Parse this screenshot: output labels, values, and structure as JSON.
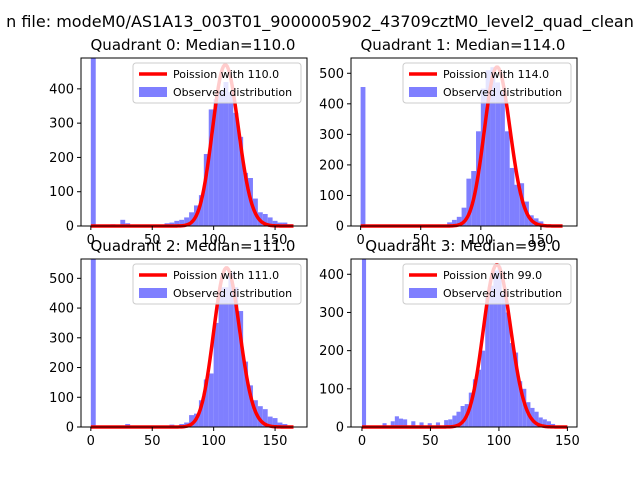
{
  "figure": {
    "suptitle": "n file: modeM0/AS1A13_003T01_9000005902_43709cztM0_level2_quad_clean"
  },
  "colors": {
    "hist": "#7f7fff",
    "poisson": "#ff0000"
  },
  "chart_data": [
    {
      "type": "bar",
      "title": "Quadrant 0: Median=110.0",
      "legend": [
        "Poission with 110.0",
        "Observed distribution"
      ],
      "legend_loc": "upper-right",
      "xlim": [
        -8,
        176
      ],
      "ylim": [
        0,
        490
      ],
      "xticks": [
        0,
        50,
        100,
        150
      ],
      "yticks": [
        0,
        100,
        200,
        300,
        400
      ],
      "bin_width": 4,
      "bins_start": [
        0,
        16,
        24,
        28,
        36,
        52,
        60,
        64,
        68,
        72,
        76,
        80,
        84,
        88,
        92,
        96,
        100,
        104,
        108,
        112,
        116,
        120,
        124,
        128,
        132,
        136,
        140,
        144,
        148,
        152,
        156,
        160
      ],
      "values": [
        490,
        5,
        18,
        8,
        4,
        3,
        8,
        10,
        15,
        18,
        25,
        40,
        60,
        90,
        210,
        340,
        370,
        395,
        420,
        390,
        330,
        260,
        155,
        140,
        80,
        40,
        35,
        25,
        15,
        10,
        10,
        5
      ],
      "poisson_mean": 110,
      "poisson_amp": 470,
      "poisson_x": [
        0,
        165
      ]
    },
    {
      "type": "bar",
      "title": "Quadrant 1: Median=114.0",
      "legend": [
        "Poission with 114.0",
        "Observed distribution"
      ],
      "legend_loc": "upper-right",
      "xlim": [
        -8,
        180
      ],
      "ylim": [
        0,
        550
      ],
      "xticks": [
        0,
        50,
        100,
        150
      ],
      "yticks": [
        0,
        100,
        200,
        300,
        400,
        500
      ],
      "bin_width": 4,
      "bins_start": [
        0,
        24,
        56,
        64,
        72,
        76,
        80,
        84,
        88,
        92,
        96,
        100,
        104,
        108,
        112,
        116,
        120,
        124,
        128,
        132,
        136,
        140,
        144,
        148,
        156
      ],
      "values": [
        455,
        5,
        5,
        5,
        12,
        20,
        30,
        60,
        155,
        180,
        310,
        450,
        510,
        520,
        470,
        440,
        310,
        190,
        135,
        140,
        80,
        35,
        25,
        15,
        5
      ],
      "poisson_mean": 114,
      "poisson_amp": 520,
      "poisson_x": [
        0,
        168
      ]
    },
    {
      "type": "bar",
      "title": "Quadrant 2: Median=111.0",
      "legend": [
        "Poission with 111.0",
        "Observed distribution"
      ],
      "legend_loc": "upper-right",
      "xlim": [
        -8,
        176
      ],
      "ylim": [
        0,
        565
      ],
      "xticks": [
        0,
        50,
        100,
        150
      ],
      "yticks": [
        0,
        100,
        200,
        300,
        400,
        500
      ],
      "bin_width": 4,
      "bins_start": [
        0,
        24,
        28,
        40,
        48,
        64,
        72,
        76,
        80,
        84,
        88,
        92,
        96,
        100,
        104,
        108,
        112,
        116,
        120,
        124,
        128,
        132,
        136,
        140,
        144,
        148,
        152,
        156
      ],
      "values": [
        565,
        5,
        10,
        5,
        5,
        8,
        10,
        15,
        40,
        45,
        90,
        160,
        180,
        350,
        470,
        470,
        520,
        470,
        390,
        220,
        140,
        90,
        70,
        60,
        35,
        30,
        15,
        10
      ],
      "poisson_mean": 111,
      "poisson_amp": 535,
      "poisson_x": [
        0,
        165
      ]
    },
    {
      "type": "bar",
      "title": "Quadrant 3: Median=99.0",
      "legend": [
        "Poission with 99.0",
        "Observed distribution"
      ],
      "legend_loc": "upper-right",
      "xlim": [
        -8,
        157
      ],
      "ylim": [
        0,
        440
      ],
      "xticks": [
        0,
        50,
        100,
        150
      ],
      "yticks": [
        0,
        100,
        200,
        300,
        400
      ],
      "bin_width": 3,
      "bins_start": [
        0,
        15,
        21,
        24,
        27,
        30,
        36,
        42,
        48,
        54,
        60,
        63,
        66,
        69,
        72,
        75,
        78,
        81,
        84,
        87,
        90,
        93,
        96,
        99,
        102,
        105,
        108,
        111,
        114,
        117,
        120,
        123,
        126,
        129,
        132,
        135,
        138
      ],
      "values": [
        440,
        10,
        15,
        28,
        22,
        20,
        15,
        12,
        10,
        12,
        18,
        20,
        30,
        40,
        55,
        60,
        90,
        125,
        150,
        200,
        340,
        370,
        410,
        420,
        350,
        300,
        220,
        195,
        120,
        100,
        65,
        50,
        40,
        25,
        20,
        15,
        8
      ],
      "poisson_mean": 99,
      "poisson_amp": 425,
      "poisson_x": [
        0,
        150
      ]
    }
  ]
}
